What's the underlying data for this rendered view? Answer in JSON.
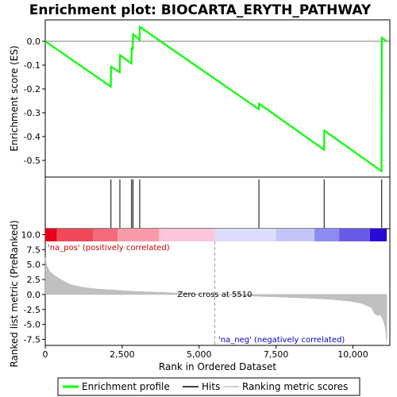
{
  "chart_data": {
    "type": "line",
    "title": "Enrichment plot: BIOCARTA_ERYTH_PATHWAY",
    "xlabel": "Rank in Ordered Dataset",
    "xlim": [
      0,
      11200
    ],
    "x_ticks": [
      0,
      2500,
      5000,
      7500,
      10000
    ],
    "x_tick_labels": [
      "0",
      "2,500",
      "5,000",
      "7,500",
      "10,000"
    ],
    "panels": {
      "enrichment": {
        "ylabel": "Enrichment score (ES)",
        "ylim": [
          -0.57,
          0.09
        ],
        "y_ticks": [
          0.0,
          -0.1,
          -0.2,
          -0.3,
          -0.4,
          -0.5
        ],
        "y_tick_labels": [
          "0.0",
          "-0.1",
          "-0.2",
          "-0.3",
          "-0.4",
          "-0.5"
        ],
        "series": [
          {
            "name": "Enrichment profile",
            "color": "#00ff00",
            "x": [
              0,
              2130,
              2140,
              2420,
              2430,
              2800,
              2810,
              2845,
              2855,
              3065,
              3075,
              6940,
              6950,
              9060,
              9070,
              10930,
              10940,
              11100
            ],
            "y": [
              0.0,
              -0.19,
              -0.107,
              -0.13,
              -0.058,
              -0.093,
              -0.03,
              -0.032,
              0.03,
              0.006,
              0.06,
              -0.285,
              -0.262,
              -0.455,
              -0.375,
              -0.545,
              0.015,
              0.0
            ]
          }
        ]
      },
      "hits": {
        "positions": [
          2135,
          2425,
          2805,
          2850,
          3070,
          6945,
          9065,
          10935
        ]
      },
      "ranked_metric": {
        "ylabel": "Ranked list metric (PreRanked)",
        "ylim": [
          -8.5,
          11.0
        ],
        "y_ticks": [
          10.0,
          7.5,
          5.0,
          2.5,
          0.0,
          -2.5,
          -5.0,
          -7.5
        ],
        "y_tick_labels": [
          "10.0",
          "7.5",
          "5.0",
          "2.5",
          "0.0",
          "-2.5",
          "-5.0",
          "-7.5"
        ],
        "profile_x": [
          0,
          50,
          150,
          300,
          500,
          800,
          1200,
          1700,
          2300,
          3000,
          3800,
          4600,
          5510,
          6500,
          7500,
          8500,
          9300,
          9900,
          10300,
          10600,
          10700,
          10800,
          10900,
          11000,
          11050,
          11100
        ],
        "profile_y": [
          6.2,
          4.8,
          3.8,
          3.2,
          2.5,
          1.7,
          1.2,
          0.9,
          0.7,
          0.5,
          0.35,
          0.15,
          0.0,
          -0.2,
          -0.4,
          -0.6,
          -0.8,
          -1.1,
          -1.5,
          -2.2,
          -3.2,
          -3.5,
          -3.4,
          -4.5,
          -5.5,
          -7.8
        ],
        "zero_cross_rank": 5510,
        "zero_cross_label": "Zero cross at 5510",
        "pos_label": "'na_pos' (positively correlated)",
        "neg_label": "'na_neg' (negatively correlated)",
        "pos_label_color": "#cc0000",
        "neg_label_color": "#0000cc"
      }
    },
    "heat_band": {
      "segments": [
        {
          "x0": 0,
          "x1": 380,
          "color": "#e8001c"
        },
        {
          "x0": 380,
          "x1": 1550,
          "color": "#f04a5a"
        },
        {
          "x0": 1550,
          "x1": 2350,
          "color": "#f46a7a"
        },
        {
          "x0": 2350,
          "x1": 3700,
          "color": "#f99aa8"
        },
        {
          "x0": 3700,
          "x1": 5510,
          "color": "#fbc6dc"
        },
        {
          "x0": 5510,
          "x1": 7500,
          "color": "#dcdcfc"
        },
        {
          "x0": 7500,
          "x1": 8750,
          "color": "#c4c4f8"
        },
        {
          "x0": 8750,
          "x1": 9550,
          "color": "#8c8cf0"
        },
        {
          "x0": 9550,
          "x1": 10550,
          "color": "#6a5ae8"
        },
        {
          "x0": 10550,
          "x1": 11100,
          "color": "#2a0ad6"
        }
      ]
    },
    "legend": {
      "placement": "bottom",
      "items": [
        {
          "label": "Enrichment profile",
          "color": "#00ff00",
          "kind": "line"
        },
        {
          "label": "Hits",
          "color": "#000000",
          "kind": "line"
        },
        {
          "label": "Ranking metric scores",
          "color": "#c0c0c0",
          "kind": "line"
        }
      ]
    }
  }
}
